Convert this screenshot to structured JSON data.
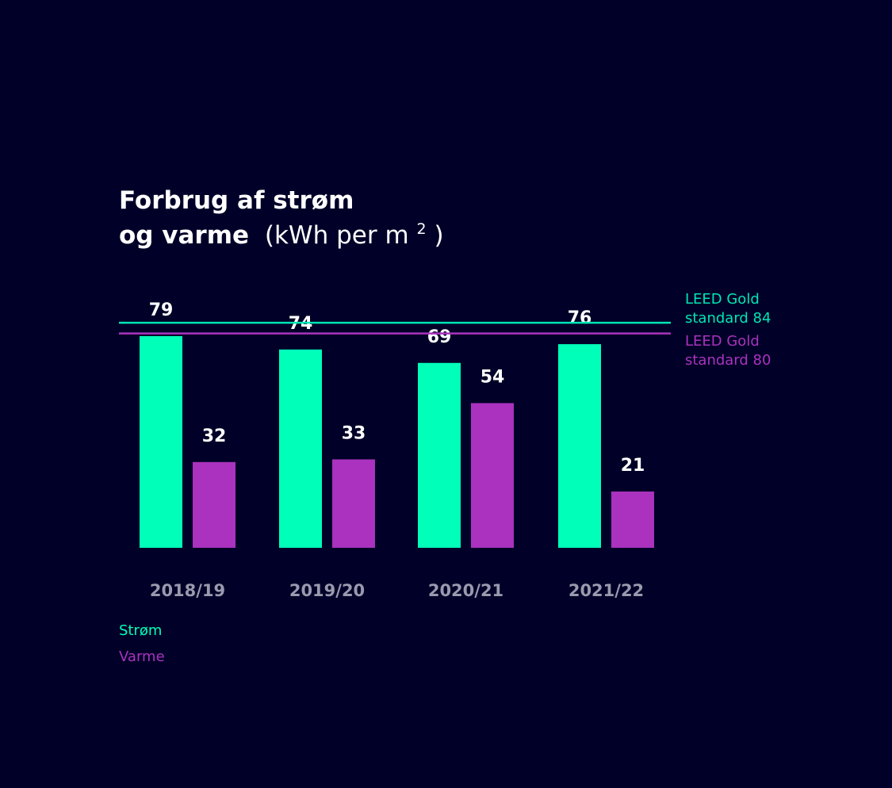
{
  "chart_data": {
    "type": "bar",
    "title_line1": "Forbrug af strøm",
    "title_line2_bold": "og varme",
    "title_line2_unit_prefix": "(kWh per m",
    "title_line2_unit_sup": "2",
    "title_line2_unit_suffix": ")",
    "categories": [
      "2018/19",
      "2019/20",
      "2020/21",
      "2021/22"
    ],
    "series": [
      {
        "name": "Strøm",
        "color": "#00ffb9",
        "values": [
          79,
          74,
          69,
          76
        ]
      },
      {
        "name": "Varme",
        "color": "#aa32be",
        "values": [
          32,
          33,
          54,
          21
        ]
      }
    ],
    "reference_lines": [
      {
        "line1": "LEED Gold",
        "line2": "standard 84",
        "value": 84,
        "color": "#00e6b4"
      },
      {
        "line1": "LEED Gold",
        "line2": "standard 80",
        "value": 80,
        "color": "#aa32be"
      }
    ],
    "grid": false,
    "legend_position": "bottom-left"
  }
}
